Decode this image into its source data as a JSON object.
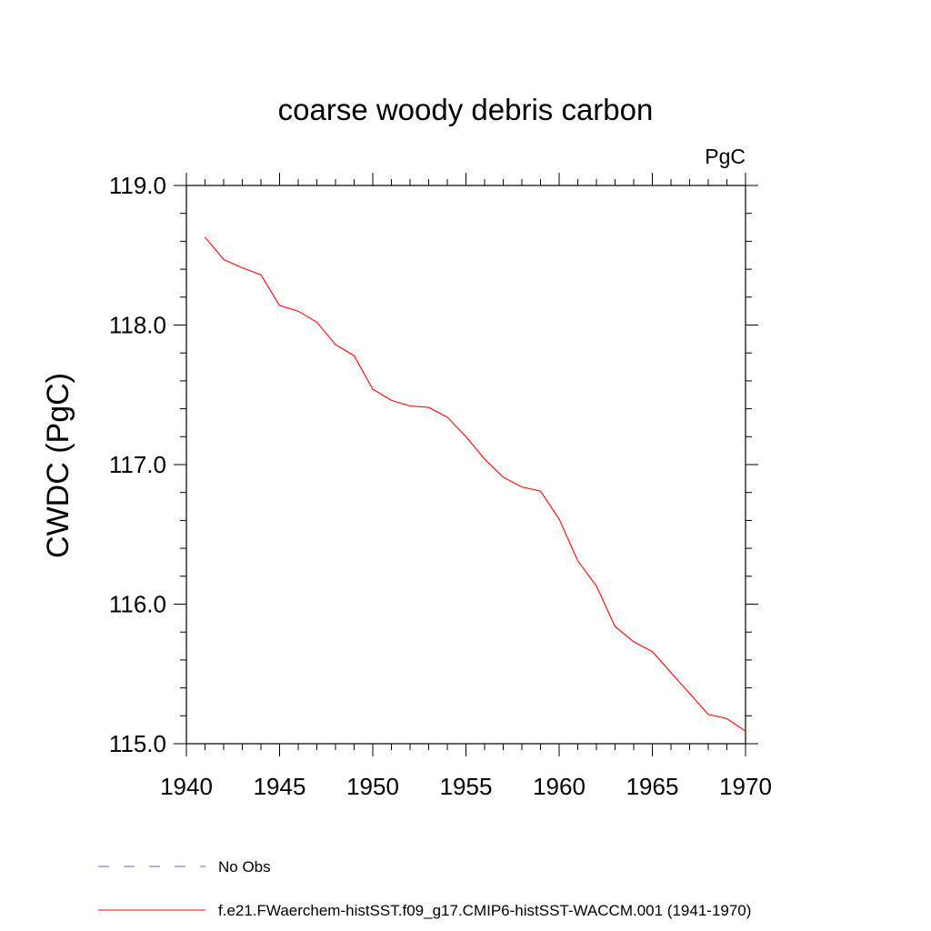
{
  "chart_data": {
    "type": "line",
    "title": "coarse woody debris carbon",
    "units_label": "PgC",
    "xlabel": "",
    "ylabel": "CWDC  (PgC)",
    "xlim": [
      1940,
      1970
    ],
    "ylim": [
      115.0,
      119.0
    ],
    "xticks": [
      1940,
      1945,
      1950,
      1955,
      1960,
      1965,
      1970
    ],
    "yticks": [
      "115.0",
      "116.0",
      "117.0",
      "118.0",
      "119.0"
    ],
    "grid": false,
    "legend_position": "bottom",
    "colors": {
      "model": "#ff0000",
      "obs": "#6a5acd"
    },
    "series": [
      {
        "name": "f.e21.FWaerchem-histSST.f09_g17.CMIP6-histSST-WACCM.001 (1941-1970)",
        "x": [
          1941,
          1942,
          1943,
          1944,
          1945,
          1946,
          1947,
          1948,
          1949,
          1950,
          1951,
          1952,
          1953,
          1954,
          1955,
          1956,
          1957,
          1958,
          1959,
          1960,
          1961,
          1962,
          1963,
          1964,
          1965,
          1966,
          1967,
          1968,
          1969,
          1970
        ],
        "values": [
          118.63,
          118.47,
          118.41,
          118.36,
          118.14,
          118.1,
          118.02,
          117.86,
          117.78,
          117.54,
          117.46,
          117.42,
          117.41,
          117.34,
          117.2,
          117.04,
          116.91,
          116.84,
          116.81,
          116.61,
          116.31,
          116.13,
          115.84,
          115.73,
          115.66,
          115.51,
          115.36,
          115.21,
          115.18,
          115.09
        ]
      }
    ],
    "legend": [
      {
        "name": "No Obs",
        "style": "dashed"
      },
      {
        "name": "f.e21.FWaerchem-histSST.f09_g17.CMIP6-histSST-WACCM.001 (1941-1970)",
        "style": "solid"
      }
    ]
  }
}
